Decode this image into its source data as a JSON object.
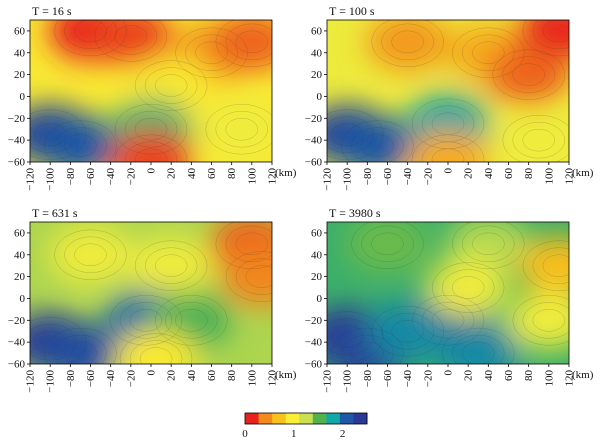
{
  "chart_data": [
    {
      "type": "heatmap",
      "title": "T = 16 s",
      "xlabel": "(km)",
      "xlim": [
        -120,
        120
      ],
      "ylim": [
        -60,
        70
      ],
      "x_ticks": [
        "−120",
        "−100",
        "−80",
        "−60",
        "−40",
        "−20",
        "0",
        "20",
        "40",
        "60",
        "80",
        "100",
        "120"
      ],
      "y_ticks": [
        "60",
        "40",
        "20",
        "0",
        "−20",
        "−40",
        "−60"
      ],
      "regions": [
        {
          "x": -60,
          "y": 60,
          "value": 0.0
        },
        {
          "x": -20,
          "y": 55,
          "value": 0.1
        },
        {
          "x": 60,
          "y": 40,
          "value": 0.4
        },
        {
          "x": 20,
          "y": 10,
          "value": 0.9
        },
        {
          "x": -100,
          "y": -35,
          "value": 2.4
        },
        {
          "x": -70,
          "y": -45,
          "value": 2.2
        },
        {
          "x": 0,
          "y": -30,
          "value": 1.7
        },
        {
          "x": 0,
          "y": -58,
          "value": 0.1
        },
        {
          "x": 90,
          "y": -30,
          "value": 1.0
        },
        {
          "x": 100,
          "y": 50,
          "value": 0.2
        }
      ]
    },
    {
      "type": "heatmap",
      "title": "T = 100 s",
      "xlabel": "(km)",
      "xlim": [
        -120,
        120
      ],
      "ylim": [
        -60,
        70
      ],
      "x_ticks": [
        "−120",
        "−100",
        "−80",
        "−60",
        "−40",
        "−20",
        "0",
        "20",
        "40",
        "60",
        "80",
        "100",
        "120"
      ],
      "y_ticks": [
        "60",
        "40",
        "20",
        "0",
        "−20",
        "−40",
        "−60"
      ],
      "regions": [
        {
          "x": -40,
          "y": 50,
          "value": 0.4
        },
        {
          "x": 40,
          "y": 40,
          "value": 0.5
        },
        {
          "x": 110,
          "y": 60,
          "value": 0.0
        },
        {
          "x": 80,
          "y": 20,
          "value": 0.2
        },
        {
          "x": -100,
          "y": -35,
          "value": 2.4
        },
        {
          "x": -70,
          "y": -45,
          "value": 2.2
        },
        {
          "x": 0,
          "y": -25,
          "value": 1.9
        },
        {
          "x": 0,
          "y": -58,
          "value": 0.5
        },
        {
          "x": 90,
          "y": -40,
          "value": 1.0
        }
      ]
    },
    {
      "type": "heatmap",
      "title": "T = 631 s",
      "xlabel": "(km)",
      "xlim": [
        -120,
        120
      ],
      "ylim": [
        -60,
        70
      ],
      "x_ticks": [
        "−120",
        "−100",
        "−80",
        "−60",
        "−40",
        "−20",
        "0",
        "20",
        "40",
        "60",
        "80",
        "100",
        "120"
      ],
      "y_ticks": [
        "60",
        "40",
        "20",
        "0",
        "−20",
        "−40",
        "−60"
      ],
      "regions": [
        {
          "x": -60,
          "y": 40,
          "value": 1.0
        },
        {
          "x": 20,
          "y": 30,
          "value": 1.0
        },
        {
          "x": 100,
          "y": 50,
          "value": 0.2
        },
        {
          "x": 110,
          "y": 20,
          "value": 0.3
        },
        {
          "x": -100,
          "y": -40,
          "value": 2.5
        },
        {
          "x": -70,
          "y": -50,
          "value": 2.3
        },
        {
          "x": -5,
          "y": -20,
          "value": 2.1
        },
        {
          "x": 40,
          "y": -20,
          "value": 1.6
        },
        {
          "x": 5,
          "y": -55,
          "value": 0.9
        }
      ]
    },
    {
      "type": "heatmap",
      "title": "T = 3980 s",
      "xlabel": "(km)",
      "xlim": [
        -120,
        120
      ],
      "ylim": [
        -60,
        70
      ],
      "x_ticks": [
        "−120",
        "−100",
        "−80",
        "−60",
        "−40",
        "−20",
        "0",
        "20",
        "40",
        "60",
        "80",
        "100",
        "120"
      ],
      "y_ticks": [
        "60",
        "40",
        "20",
        "0",
        "−20",
        "−40",
        "−60"
      ],
      "regions": [
        {
          "x": -60,
          "y": 50,
          "value": 1.5
        },
        {
          "x": 40,
          "y": 50,
          "value": 1.3
        },
        {
          "x": 110,
          "y": 30,
          "value": 0.6
        },
        {
          "x": 100,
          "y": -20,
          "value": 1.0
        },
        {
          "x": -100,
          "y": -35,
          "value": 2.5
        },
        {
          "x": -80,
          "y": -50,
          "value": 2.4
        },
        {
          "x": 0,
          "y": -20,
          "value": 2.4
        },
        {
          "x": -40,
          "y": -30,
          "value": 2.0
        },
        {
          "x": 30,
          "y": -50,
          "value": 2.0
        },
        {
          "x": 20,
          "y": 10,
          "value": 1.0
        }
      ]
    }
  ],
  "colorbar": {
    "labels": [
      "0",
      "1",
      "2"
    ],
    "values": [
      0,
      1,
      2
    ],
    "range": [
      0,
      2.5
    ],
    "colors": [
      "#e8211f",
      "#f28a1e",
      "#f7c11e",
      "#f9ef36",
      "#c8e052",
      "#53b24b",
      "#10a9a5",
      "#1f58a6",
      "#2a3a94"
    ]
  }
}
